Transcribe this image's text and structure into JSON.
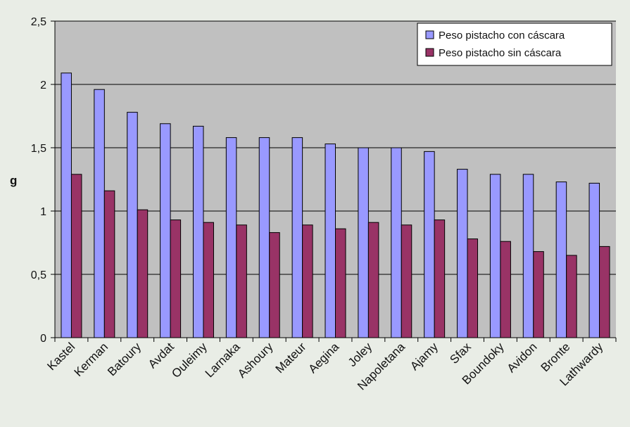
{
  "chart_data": {
    "type": "bar",
    "ylabel": "g",
    "ylim": [
      0,
      2.5
    ],
    "yticks": [
      "0",
      "0,5",
      "1",
      "1,5",
      "2",
      "2,5"
    ],
    "ytick_values": [
      0,
      0.5,
      1,
      1.5,
      2,
      2.5
    ],
    "grid": true,
    "legend_position": "top-right",
    "categories": [
      "Kastel",
      "Kerman",
      "Batoury",
      "Avdat",
      "Ouleimy",
      "Larnaka",
      "Ashoury",
      "Mateur",
      "Aegina",
      "Joley",
      "Napoletana",
      "Ajamy",
      "Sfax",
      "Boundoky",
      "Avidon",
      "Bronte",
      "Lathwardy"
    ],
    "series": [
      {
        "name": "Peso pistacho con cáscara",
        "color": "#9999ff",
        "values": [
          2.09,
          1.96,
          1.78,
          1.69,
          1.67,
          1.58,
          1.58,
          1.58,
          1.53,
          1.5,
          1.5,
          1.47,
          1.33,
          1.29,
          1.29,
          1.23,
          1.22
        ]
      },
      {
        "name": "Peso pistacho sin cáscara",
        "color": "#993366",
        "values": [
          1.29,
          1.16,
          1.01,
          0.93,
          0.91,
          0.89,
          0.83,
          0.89,
          0.86,
          0.91,
          0.89,
          0.93,
          0.78,
          0.76,
          0.68,
          0.65,
          0.72
        ]
      }
    ],
    "colors": {
      "plot_background": "#c0c0c0",
      "page_background": "#e9ede6",
      "gridline": "#000000"
    }
  }
}
